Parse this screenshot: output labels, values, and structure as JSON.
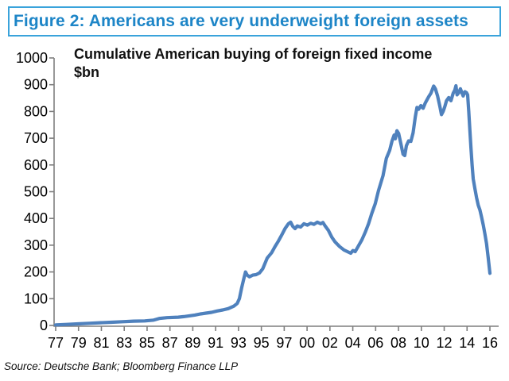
{
  "figure_title": "Figure 2: Americans are very underweight foreign assets",
  "source_note": "Source: Deutsche Bank; Bloomberg Finance LLP",
  "colors": {
    "header_border": "#3aa3db",
    "header_text": "#1d85c7",
    "line": "#4f81bd",
    "axis": "#7f7f7f",
    "tick_text": "#000000"
  },
  "chart_data": {
    "type": "line",
    "title": "Cumulative American buying of foreign fixed income",
    "subtitle": "$bn",
    "xlabel": "",
    "ylabel": "",
    "ylim": [
      0,
      1000
    ],
    "y_ticks": [
      0,
      100,
      200,
      300,
      400,
      500,
      600,
      700,
      800,
      900,
      1000
    ],
    "x_tick_labels": [
      "77",
      "79",
      "81",
      "83",
      "85",
      "87",
      "89",
      "91",
      "93",
      "95",
      "97",
      "00",
      "02",
      "04",
      "06",
      "08",
      "10",
      "12",
      "14",
      "16"
    ],
    "x_range_years": [
      1977,
      2016
    ],
    "grid": false,
    "legend_position": "none",
    "series": [
      {
        "name": "Cumulative American buying of foreign fixed income ($bn)",
        "points": [
          [
            1977.0,
            2
          ],
          [
            1978.0,
            4
          ],
          [
            1979.0,
            6
          ],
          [
            1980.0,
            8
          ],
          [
            1981.0,
            10
          ],
          [
            1982.0,
            12
          ],
          [
            1983.0,
            14
          ],
          [
            1984.0,
            16
          ],
          [
            1985.0,
            17
          ],
          [
            1985.8,
            20
          ],
          [
            1986.3,
            26
          ],
          [
            1987.0,
            29
          ],
          [
            1988.0,
            31
          ],
          [
            1988.5,
            33
          ],
          [
            1989.0,
            36
          ],
          [
            1989.5,
            39
          ],
          [
            1990.0,
            43
          ],
          [
            1990.5,
            46
          ],
          [
            1991.0,
            49
          ],
          [
            1991.5,
            54
          ],
          [
            1992.0,
            58
          ],
          [
            1992.5,
            63
          ],
          [
            1993.0,
            72
          ],
          [
            1993.3,
            82
          ],
          [
            1993.5,
            100
          ],
          [
            1993.7,
            140
          ],
          [
            1993.9,
            175
          ],
          [
            1994.05,
            200
          ],
          [
            1994.2,
            188
          ],
          [
            1994.4,
            182
          ],
          [
            1994.7,
            188
          ],
          [
            1995.0,
            190
          ],
          [
            1995.3,
            196
          ],
          [
            1995.6,
            212
          ],
          [
            1996.0,
            252
          ],
          [
            1996.4,
            272
          ],
          [
            1996.7,
            295
          ],
          [
            1997.0,
            315
          ],
          [
            1997.3,
            338
          ],
          [
            1997.6,
            362
          ],
          [
            1997.9,
            380
          ],
          [
            1998.1,
            386
          ],
          [
            1998.3,
            370
          ],
          [
            1998.5,
            362
          ],
          [
            1998.7,
            372
          ],
          [
            1999.0,
            368
          ],
          [
            1999.3,
            380
          ],
          [
            1999.6,
            375
          ],
          [
            1999.9,
            382
          ],
          [
            2000.2,
            378
          ],
          [
            2000.5,
            386
          ],
          [
            2000.8,
            380
          ],
          [
            2001.0,
            385
          ],
          [
            2001.2,
            372
          ],
          [
            2001.5,
            355
          ],
          [
            2001.8,
            330
          ],
          [
            2002.1,
            312
          ],
          [
            2002.5,
            295
          ],
          [
            2002.9,
            282
          ],
          [
            2003.2,
            276
          ],
          [
            2003.5,
            270
          ],
          [
            2003.7,
            280
          ],
          [
            2003.9,
            276
          ],
          [
            2004.2,
            298
          ],
          [
            2004.5,
            320
          ],
          [
            2004.8,
            348
          ],
          [
            2005.1,
            380
          ],
          [
            2005.4,
            420
          ],
          [
            2005.7,
            455
          ],
          [
            2006.0,
            505
          ],
          [
            2006.4,
            560
          ],
          [
            2006.7,
            625
          ],
          [
            2007.0,
            655
          ],
          [
            2007.2,
            688
          ],
          [
            2007.4,
            712
          ],
          [
            2007.5,
            698
          ],
          [
            2007.65,
            728
          ],
          [
            2007.8,
            718
          ],
          [
            2008.0,
            680
          ],
          [
            2008.2,
            640
          ],
          [
            2008.35,
            635
          ],
          [
            2008.5,
            672
          ],
          [
            2008.7,
            690
          ],
          [
            2008.9,
            688
          ],
          [
            2009.1,
            720
          ],
          [
            2009.3,
            780
          ],
          [
            2009.45,
            815
          ],
          [
            2009.6,
            808
          ],
          [
            2009.8,
            822
          ],
          [
            2010.0,
            812
          ],
          [
            2010.2,
            832
          ],
          [
            2010.5,
            855
          ],
          [
            2010.7,
            868
          ],
          [
            2010.95,
            895
          ],
          [
            2011.1,
            885
          ],
          [
            2011.3,
            858
          ],
          [
            2011.5,
            820
          ],
          [
            2011.65,
            788
          ],
          [
            2011.8,
            800
          ],
          [
            2011.95,
            818
          ],
          [
            2012.1,
            840
          ],
          [
            2012.3,
            852
          ],
          [
            2012.5,
            840
          ],
          [
            2012.7,
            868
          ],
          [
            2012.85,
            880
          ],
          [
            2012.95,
            896
          ],
          [
            2013.05,
            862
          ],
          [
            2013.2,
            870
          ],
          [
            2013.35,
            885
          ],
          [
            2013.5,
            868
          ],
          [
            2013.6,
            858
          ],
          [
            2013.75,
            874
          ],
          [
            2013.9,
            870
          ],
          [
            2014.0,
            862
          ],
          [
            2014.1,
            800
          ],
          [
            2014.2,
            730
          ],
          [
            2014.3,
            662
          ],
          [
            2014.4,
            600
          ],
          [
            2014.5,
            548
          ],
          [
            2014.65,
            512
          ],
          [
            2014.8,
            478
          ],
          [
            2014.95,
            450
          ],
          [
            2015.1,
            432
          ],
          [
            2015.25,
            405
          ],
          [
            2015.4,
            376
          ],
          [
            2015.55,
            342
          ],
          [
            2015.7,
            305
          ],
          [
            2015.85,
            252
          ],
          [
            2016.0,
            195
          ]
        ]
      }
    ]
  }
}
